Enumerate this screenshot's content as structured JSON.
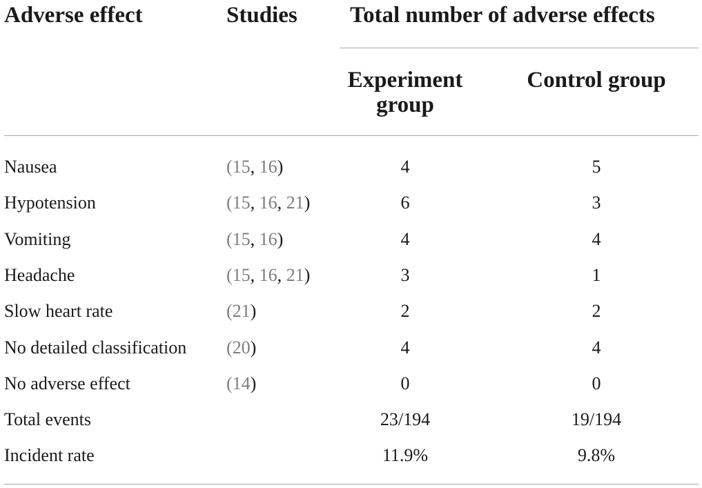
{
  "table": {
    "headers": {
      "adverse_effect": "Adverse effect",
      "studies": "Studies",
      "total": "Total number of adverse effects",
      "experiment_line1": "Experiment",
      "experiment_line2": "group",
      "control": "Control group"
    },
    "rows": [
      {
        "effect": "Nausea",
        "refs": [
          "15",
          "16"
        ],
        "experiment": "4",
        "control": "5"
      },
      {
        "effect": "Hypotension",
        "refs": [
          "15",
          "16",
          "21"
        ],
        "experiment": "6",
        "control": "3"
      },
      {
        "effect": "Vomiting",
        "refs": [
          "15",
          "16"
        ],
        "experiment": "4",
        "control": "4"
      },
      {
        "effect": "Headache",
        "refs": [
          "15",
          "16",
          "21"
        ],
        "experiment": "3",
        "control": "1"
      },
      {
        "effect": "Slow heart rate",
        "refs": [
          "21"
        ],
        "experiment": "2",
        "control": "2"
      },
      {
        "effect": "No detailed classification",
        "refs": [
          "20"
        ],
        "experiment": "4",
        "control": "4"
      },
      {
        "effect": "No adverse effect",
        "refs": [
          "14"
        ],
        "experiment": "0",
        "control": "0"
      },
      {
        "effect": "Total events",
        "refs": [],
        "experiment": "23/194",
        "control": "19/194"
      },
      {
        "effect": "Incident rate",
        "refs": [],
        "experiment": "11.9%",
        "control": "9.8%"
      }
    ]
  },
  "colors": {
    "text": "#1a1a1a",
    "reference_link": "#7d7d7d",
    "rule": "#a8a8a8"
  }
}
